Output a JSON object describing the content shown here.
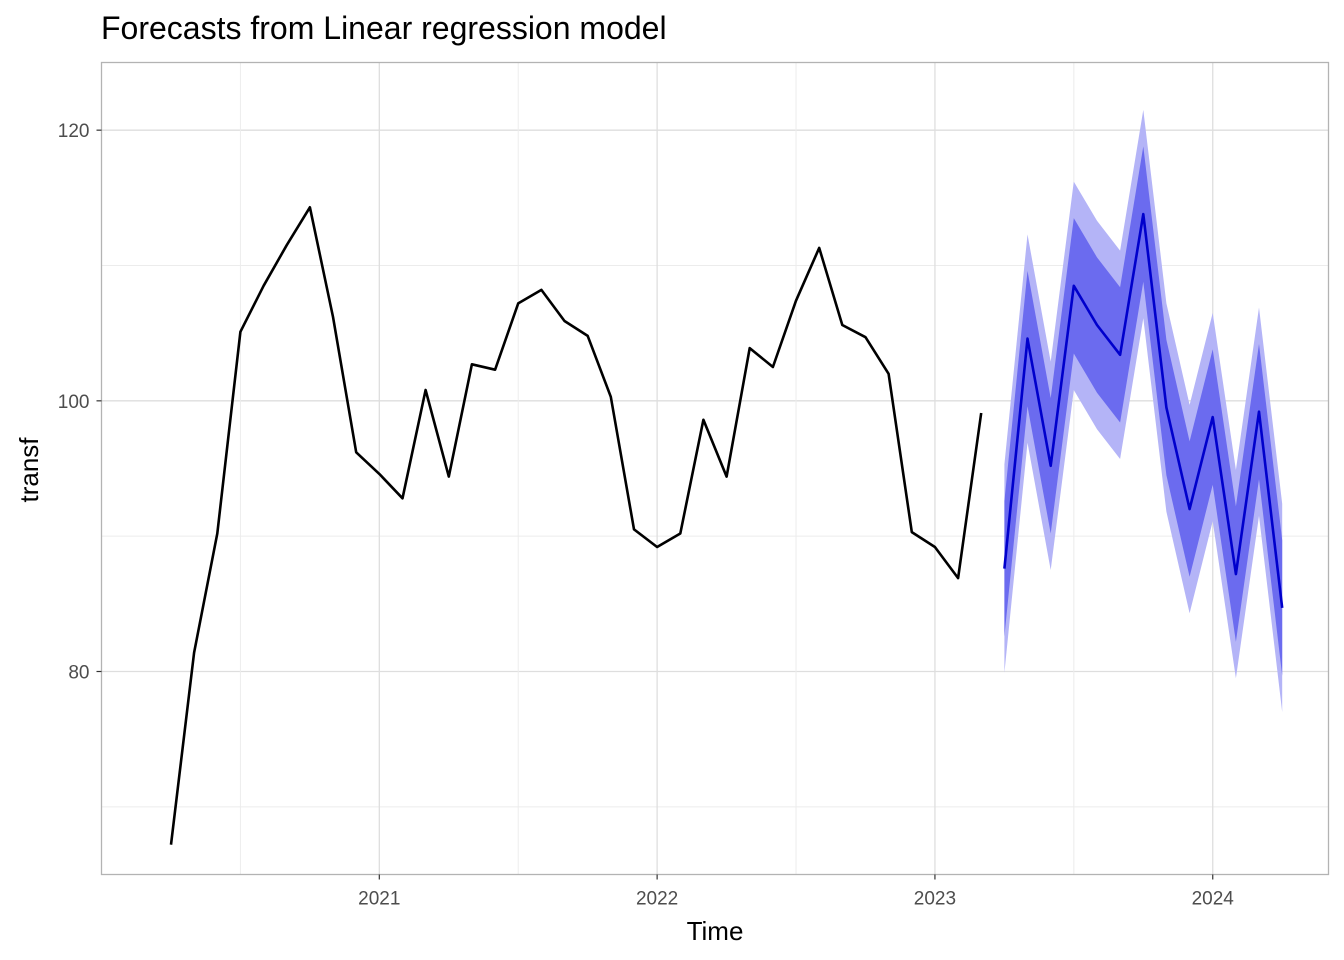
{
  "chart_data": {
    "type": "line",
    "title": "Forecasts from Linear regression model",
    "xlabel": "Time",
    "ylabel": "transf",
    "x_ticks": [
      "2021",
      "2022",
      "2023",
      "2024"
    ],
    "y_ticks": [
      "80",
      "100",
      "120"
    ],
    "xlim": [
      "2020-01",
      "2024-06"
    ],
    "ylim": [
      65,
      125
    ],
    "grid": true,
    "legend": "none",
    "colors": {
      "observed": "#000000",
      "forecast": "#0000cc",
      "pi80": "#6b6bef",
      "pi95": "#b4b4f7",
      "grid_major": "#dedede",
      "grid_minor": "#ececec",
      "border": "#b3b3b3"
    },
    "series": [
      {
        "kind": "observed",
        "x": [
          "2020-04",
          "2020-05",
          "2020-06",
          "2020-07",
          "2020-08",
          "2020-09",
          "2020-10",
          "2020-11",
          "2020-12",
          "2021-01",
          "2021-02",
          "2021-03",
          "2021-04",
          "2021-05",
          "2021-06",
          "2021-07",
          "2021-08",
          "2021-09",
          "2021-10",
          "2021-11",
          "2021-12",
          "2022-01",
          "2022-02",
          "2022-03",
          "2022-04",
          "2022-05",
          "2022-06",
          "2022-07",
          "2022-08",
          "2022-09",
          "2022-10",
          "2022-11",
          "2022-12",
          "2023-01",
          "2023-02",
          "2023-03"
        ],
        "values": [
          67.2,
          81.4,
          90.2,
          105.1,
          108.5,
          111.5,
          114.3,
          106.2,
          96.2,
          94.6,
          92.8,
          100.8,
          94.4,
          102.7,
          102.3,
          107.2,
          108.2,
          105.9,
          104.8,
          100.3,
          90.5,
          89.2,
          90.2,
          98.6,
          94.4,
          103.9,
          102.5,
          107.4,
          111.3,
          105.6,
          104.7,
          102.0,
          90.3,
          89.2,
          86.9,
          99.1
        ]
      },
      {
        "kind": "forecast",
        "x": [
          "2023-04",
          "2023-05",
          "2023-06",
          "2023-07",
          "2023-08",
          "2023-09",
          "2023-10",
          "2023-11",
          "2023-12",
          "2024-01",
          "2024-02",
          "2024-03",
          "2024-04"
        ],
        "values": [
          87.6,
          104.6,
          95.2,
          108.5,
          105.6,
          103.4,
          113.8,
          99.5,
          92.0,
          98.8,
          87.2,
          99.2,
          84.7
        ],
        "lo80": [
          82.6,
          99.6,
          90.2,
          103.5,
          100.6,
          98.4,
          108.8,
          94.5,
          87.0,
          93.8,
          82.2,
          94.2,
          79.7
        ],
        "hi80": [
          92.6,
          109.6,
          100.2,
          113.5,
          110.6,
          108.4,
          118.8,
          104.5,
          97.0,
          103.8,
          92.2,
          104.2,
          89.7
        ],
        "lo95": [
          79.9,
          96.9,
          87.5,
          100.8,
          97.9,
          95.7,
          106.1,
          91.8,
          84.3,
          91.1,
          79.5,
          91.5,
          77.0
        ],
        "hi95": [
          95.3,
          112.3,
          102.9,
          116.2,
          113.3,
          111.1,
          121.5,
          107.2,
          99.7,
          106.5,
          94.9,
          106.9,
          92.4
        ]
      }
    ]
  }
}
